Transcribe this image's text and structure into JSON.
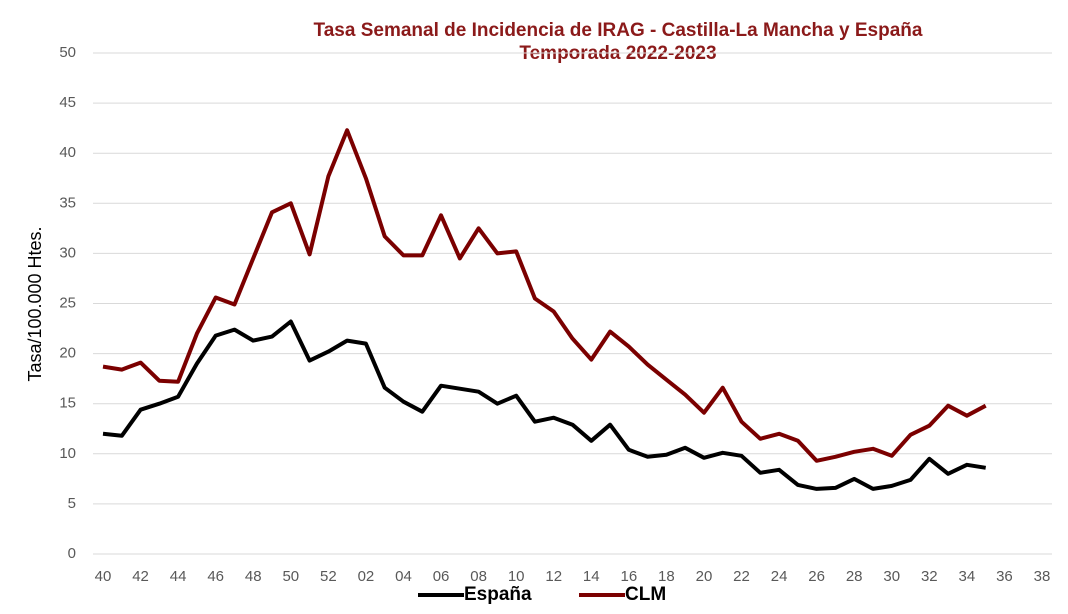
{
  "chart_data": {
    "type": "line",
    "title": "Tasa Semanal de Incidencia de IRAG - Castilla-La Mancha y España",
    "subtitle": "Temporada 2022-2023",
    "y_label": "Tasa/100.000 Htes.",
    "categories": [
      "40",
      null,
      "42",
      null,
      "44",
      null,
      "46",
      null,
      "48",
      null,
      "50",
      null,
      "52",
      null,
      "02",
      null,
      "04",
      null,
      "06",
      null,
      "08",
      null,
      "10",
      null,
      "12",
      null,
      "14",
      null,
      "16",
      null,
      "18",
      null,
      "20",
      null,
      "22",
      null,
      "24",
      null,
      "26",
      null,
      "28",
      null,
      "30",
      null,
      "32",
      null,
      "34",
      null,
      "36",
      null,
      "38"
    ],
    "series": [
      {
        "name": "España",
        "color": "#000000",
        "values": [
          12.0,
          11.8,
          14.4,
          15.0,
          15.7,
          19.0,
          21.8,
          22.4,
          21.3,
          21.7,
          23.2,
          19.3,
          20.2,
          21.3,
          21.0,
          16.6,
          15.2,
          14.2,
          16.8,
          16.5,
          16.2,
          15.0,
          15.8,
          13.2,
          13.6,
          12.9,
          11.3,
          12.9,
          10.4,
          9.7,
          9.9,
          10.6,
          9.6,
          10.1,
          9.8,
          8.1,
          8.4,
          6.9,
          6.5,
          6.6,
          7.5,
          6.5,
          6.8,
          7.4,
          9.5,
          8.0,
          8.9,
          8.6,
          null,
          null,
          null
        ]
      },
      {
        "name": "CLM",
        "color": "#7b0000",
        "values": [
          18.7,
          18.4,
          19.1,
          17.3,
          17.2,
          22.0,
          25.6,
          24.9,
          29.5,
          34.1,
          35.0,
          29.9,
          37.7,
          42.3,
          37.5,
          31.7,
          29.8,
          29.8,
          33.8,
          29.5,
          32.5,
          30.0,
          30.2,
          25.5,
          24.2,
          21.5,
          19.4,
          22.2,
          20.7,
          18.9,
          17.4,
          15.9,
          14.1,
          16.6,
          13.2,
          11.5,
          12.0,
          11.3,
          9.3,
          9.7,
          10.2,
          10.5,
          9.8,
          11.9,
          12.8,
          14.8,
          13.8,
          14.8,
          null,
          null,
          null
        ]
      }
    ],
    "ylim": [
      0,
      50
    ],
    "yticks": [
      0,
      5,
      10,
      15,
      20,
      25,
      30,
      35,
      40,
      45,
      50
    ],
    "grid": true,
    "legend": "bottom"
  }
}
